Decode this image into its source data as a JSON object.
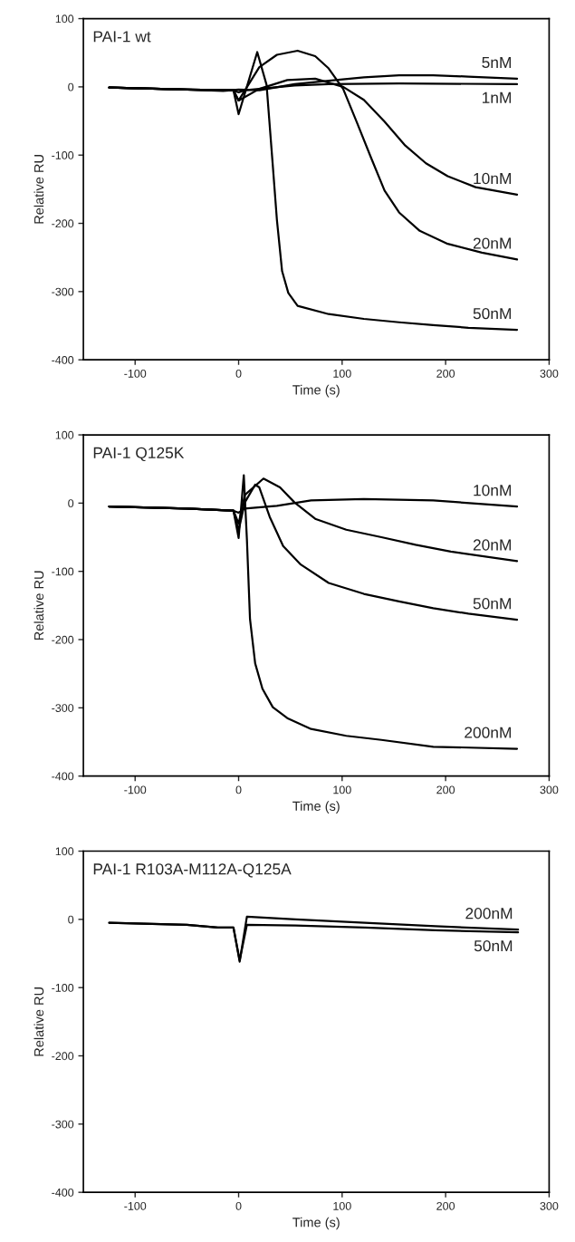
{
  "chart_data": [
    {
      "type": "line",
      "xlabel": "Time (s)",
      "ylabel": "Relative RU",
      "annotations": [
        "PAI-1 wt"
      ],
      "xlim": [
        -150,
        300
      ],
      "xticks": [
        -100,
        0,
        100,
        200,
        300
      ],
      "ylim": [
        -400,
        100
      ],
      "yticks": [
        -400,
        -300,
        -200,
        -100,
        0,
        100
      ],
      "grid": false,
      "legend": false,
      "marker": "none",
      "line_style": "solid",
      "series": [
        {
          "name": "5nM",
          "color": "#000000",
          "x": [
            -125,
            -50,
            -15,
            0,
            20,
            54,
            87,
            121,
            155,
            188,
            222,
            269
          ],
          "values": [
            -1,
            -4,
            -6,
            -4,
            -5,
            4,
            9,
            14,
            17,
            17,
            15,
            12
          ]
        },
        {
          "name": "1nM",
          "color": "#000000",
          "x": [
            -125,
            -50,
            -5,
            0,
            6,
            54,
            87,
            155,
            269
          ],
          "values": [
            -1,
            -4,
            -5,
            -8,
            -5,
            2,
            4,
            5,
            4
          ]
        },
        {
          "name": "10nM",
          "color": "#000000",
          "x": [
            -125,
            -50,
            -5,
            0,
            20,
            47,
            74,
            101,
            121,
            141,
            161,
            181,
            202,
            229,
            269
          ],
          "values": [
            -1,
            -4,
            -5,
            -20,
            -3,
            10,
            12,
            0,
            -19,
            -51,
            -86,
            -112,
            -131,
            -147,
            -158
          ]
        },
        {
          "name": "20nM",
          "color": "#000000",
          "x": [
            -125,
            -50,
            -5,
            0,
            20,
            37,
            57,
            74,
            87,
            101,
            114,
            128,
            141,
            155,
            175,
            202,
            235,
            269
          ],
          "values": [
            -1,
            -4,
            -5,
            -20,
            29,
            47,
            53,
            45,
            27,
            -3,
            -51,
            -104,
            -152,
            -184,
            -211,
            -230,
            -243,
            -253
          ]
        },
        {
          "name": "50nM",
          "color": "#000000",
          "x": [
            -125,
            -50,
            -5,
            0,
            18,
            27,
            33,
            37,
            42,
            48,
            57,
            87,
            121,
            155,
            188,
            222,
            269
          ],
          "values": [
            -1,
            -4,
            -5,
            -40,
            51,
            3,
            -115,
            -195,
            -270,
            -302,
            -321,
            -333,
            -340,
            -345,
            -349,
            -353,
            -356
          ]
        }
      ]
    },
    {
      "type": "line",
      "xlabel": "Time (s)",
      "ylabel": "Relative RU",
      "annotations": [
        "PAI-1 Q125K"
      ],
      "xlim": [
        -150,
        300
      ],
      "xticks": [
        -100,
        0,
        100,
        200,
        300
      ],
      "ylim": [
        -400,
        100
      ],
      "yticks": [
        -400,
        -300,
        -200,
        -100,
        0,
        100
      ],
      "grid": false,
      "legend": false,
      "marker": "none",
      "line_style": "solid",
      "series": [
        {
          "name": "10nM",
          "color": "#000000",
          "x": [
            -125,
            -50,
            -5,
            0,
            6,
            37,
            70,
            121,
            188,
            269
          ],
          "values": [
            -5,
            -8,
            -11,
            -14,
            -8,
            -4,
            4,
            6,
            4,
            -5
          ]
        },
        {
          "name": "20nM",
          "color": "#000000",
          "x": [
            -125,
            -50,
            -5,
            0,
            6,
            24,
            40,
            54,
            74,
            104,
            138,
            171,
            205,
            269
          ],
          "values": [
            -5,
            -8,
            -11,
            -30,
            12,
            36,
            23,
            1,
            -23,
            -39,
            -50,
            -61,
            -71,
            -85
          ]
        },
        {
          "name": "50nM",
          "color": "#000000",
          "x": [
            -125,
            -50,
            -5,
            0,
            6,
            16,
            20,
            30,
            43,
            60,
            87,
            121,
            155,
            188,
            222,
            269
          ],
          "values": [
            -5,
            -8,
            -11,
            -40,
            1,
            27,
            23,
            -20,
            -63,
            -90,
            -117,
            -133,
            -144,
            -154,
            -162,
            -171
          ]
        },
        {
          "name": "200nM",
          "color": "#000000",
          "x": [
            -125,
            -50,
            -5,
            0,
            5,
            8,
            11,
            16,
            23,
            33,
            47,
            70,
            104,
            138,
            188,
            269
          ],
          "values": [
            -5,
            -8,
            -11,
            -51,
            41,
            -53,
            -170,
            -235,
            -272,
            -299,
            -315,
            -331,
            -341,
            -347,
            -357,
            -360
          ]
        }
      ]
    },
    {
      "type": "line",
      "xlabel": "Time (s)",
      "ylabel": "Relative RU",
      "annotations": [
        "PAI-1 R103A-M112A-Q125A"
      ],
      "xlim": [
        -150,
        300
      ],
      "xticks": [
        -100,
        0,
        100,
        200,
        300
      ],
      "ylim": [
        -400,
        100
      ],
      "yticks": [
        -400,
        -300,
        -200,
        -100,
        0,
        100
      ],
      "grid": false,
      "legend": false,
      "marker": "none",
      "line_style": "solid",
      "series": [
        {
          "name": "200nM",
          "color": "#000000",
          "x": [
            -125,
            -50,
            -20,
            -5,
            1,
            8,
            55,
            122,
            190,
            270
          ],
          "values": [
            -5,
            -8,
            -12,
            -12,
            -62,
            4,
            0,
            -5,
            -10,
            -15
          ]
        },
        {
          "name": "50nM",
          "color": "#000000",
          "x": [
            -125,
            -50,
            -20,
            -5,
            1,
            8,
            55,
            122,
            190,
            270
          ],
          "values": [
            -5,
            -8,
            -12,
            -12,
            -60,
            -8,
            -9,
            -12,
            -16,
            -19
          ]
        }
      ]
    }
  ]
}
